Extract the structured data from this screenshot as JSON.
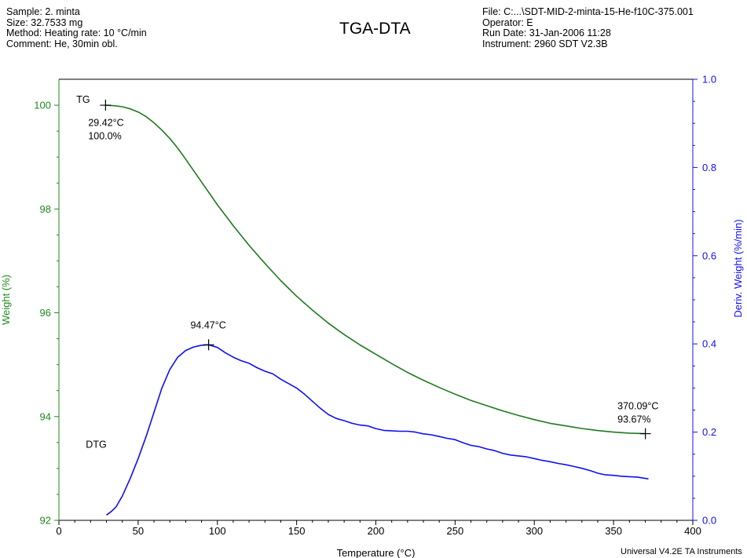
{
  "header": {
    "left": [
      "Sample: 2. minta",
      "Size:  32.7533 mg",
      "Method: Heating rate: 10 °C/min",
      "Comment: He, 30min obl."
    ],
    "right": [
      "File: C:...\\SDT-MID-2-minta-15-He-f10C-375.001",
      "Operator: E",
      "Run Date: 31-Jan-2006 11:28",
      "Instrument: 2960 SDT V2.3B"
    ]
  },
  "footer": "Universal V4.2E TA Instruments",
  "colors": {
    "tg": "#1e7a1e",
    "dtg": "#1010ee",
    "left_axis": "#1e8a1e",
    "right_axis": "#1010ee",
    "annot": "#000000"
  },
  "chart_data": {
    "type": "line",
    "title": "TGA-DTA",
    "xlabel": "Temperature (°C)",
    "ylabel": "Weight (%)",
    "y2label": "Deriv. Weight (%/min)",
    "xlim": [
      0,
      400
    ],
    "ylim": [
      92,
      100.5
    ],
    "y2lim": [
      0,
      1.0
    ],
    "xticks": [
      0,
      50,
      100,
      150,
      200,
      250,
      300,
      350,
      400
    ],
    "yticks": [
      92,
      94,
      96,
      98,
      100
    ],
    "y2ticks": [
      0.0,
      0.2,
      0.4,
      0.6,
      0.8,
      1.0
    ],
    "xtick_labels": [
      "0",
      "50",
      "100",
      "150",
      "200",
      "250",
      "300",
      "350",
      "400"
    ],
    "ytick_labels": [
      "92",
      "94",
      "96",
      "98",
      "100"
    ],
    "y2tick_labels": [
      "0.0",
      "0.2",
      "0.4",
      "0.6",
      "0.8",
      "1.0"
    ],
    "grid": false,
    "series": [
      {
        "name": "TG",
        "axis": "left",
        "x": [
          29.42,
          35,
          40,
          45,
          50,
          55,
          60,
          65,
          70,
          75,
          80,
          85,
          90,
          95,
          100,
          110,
          120,
          130,
          140,
          150,
          160,
          170,
          180,
          190,
          200,
          210,
          220,
          230,
          240,
          250,
          260,
          270,
          280,
          290,
          300,
          310,
          320,
          330,
          340,
          350,
          360,
          370.09
        ],
        "y": [
          100.0,
          99.99,
          99.97,
          99.93,
          99.87,
          99.78,
          99.66,
          99.52,
          99.36,
          99.17,
          98.96,
          98.74,
          98.52,
          98.3,
          98.08,
          97.68,
          97.3,
          96.95,
          96.62,
          96.32,
          96.05,
          95.8,
          95.58,
          95.38,
          95.2,
          95.02,
          94.85,
          94.7,
          94.56,
          94.43,
          94.31,
          94.21,
          94.11,
          94.02,
          93.94,
          93.87,
          93.82,
          93.77,
          93.73,
          93.7,
          93.68,
          93.67
        ]
      },
      {
        "name": "DTG",
        "axis": "right",
        "x": [
          30,
          33,
          36,
          40,
          45,
          50,
          55,
          60,
          65,
          70,
          75,
          80,
          85,
          90,
          94.47,
          100,
          105,
          110,
          115,
          120,
          125,
          130,
          135,
          140,
          145,
          150,
          155,
          160,
          165,
          170,
          175,
          180,
          185,
          190,
          195,
          200,
          205,
          210,
          215,
          220,
          225,
          230,
          235,
          240,
          245,
          250,
          255,
          260,
          265,
          270,
          275,
          280,
          285,
          290,
          295,
          300,
          305,
          310,
          315,
          320,
          325,
          330,
          335,
          340,
          345,
          350,
          355,
          360,
          365,
          372
        ],
        "y": [
          0.012,
          0.02,
          0.03,
          0.055,
          0.095,
          0.14,
          0.19,
          0.245,
          0.3,
          0.342,
          0.37,
          0.385,
          0.393,
          0.397,
          0.398,
          0.392,
          0.38,
          0.37,
          0.362,
          0.356,
          0.346,
          0.338,
          0.332,
          0.32,
          0.31,
          0.3,
          0.286,
          0.27,
          0.254,
          0.24,
          0.231,
          0.226,
          0.22,
          0.216,
          0.214,
          0.208,
          0.204,
          0.203,
          0.202,
          0.202,
          0.2,
          0.196,
          0.194,
          0.19,
          0.186,
          0.183,
          0.176,
          0.17,
          0.167,
          0.162,
          0.158,
          0.152,
          0.148,
          0.146,
          0.144,
          0.14,
          0.136,
          0.133,
          0.129,
          0.126,
          0.122,
          0.118,
          0.113,
          0.107,
          0.103,
          0.102,
          0.1,
          0.099,
          0.098,
          0.094
        ]
      }
    ],
    "annotations": [
      {
        "text": "TG",
        "x": 11,
        "y": 100.05,
        "axis": "left"
      },
      {
        "text": "DTG",
        "x": 17,
        "y": 93.4,
        "axis": "left"
      },
      {
        "text": "29.42°C",
        "x": 18.5,
        "y": 99.6,
        "axis": "left"
      },
      {
        "text": "100.0%",
        "x": 18.5,
        "y": 99.34,
        "axis": "left"
      },
      {
        "text": "94.47°C",
        "x": 83,
        "y": 95.7,
        "axis": "left"
      },
      {
        "text": "370.09°C",
        "x": 352.5,
        "y": 94.14,
        "axis": "left"
      },
      {
        "text": "93.67%",
        "x": 352.5,
        "y": 93.88,
        "axis": "left"
      }
    ],
    "markers": [
      {
        "x": 29.42,
        "y": 100.0,
        "axis": "left"
      },
      {
        "x": 94.47,
        "y": 0.398,
        "axis": "right"
      },
      {
        "x": 370.09,
        "y": 93.67,
        "axis": "left"
      }
    ]
  }
}
